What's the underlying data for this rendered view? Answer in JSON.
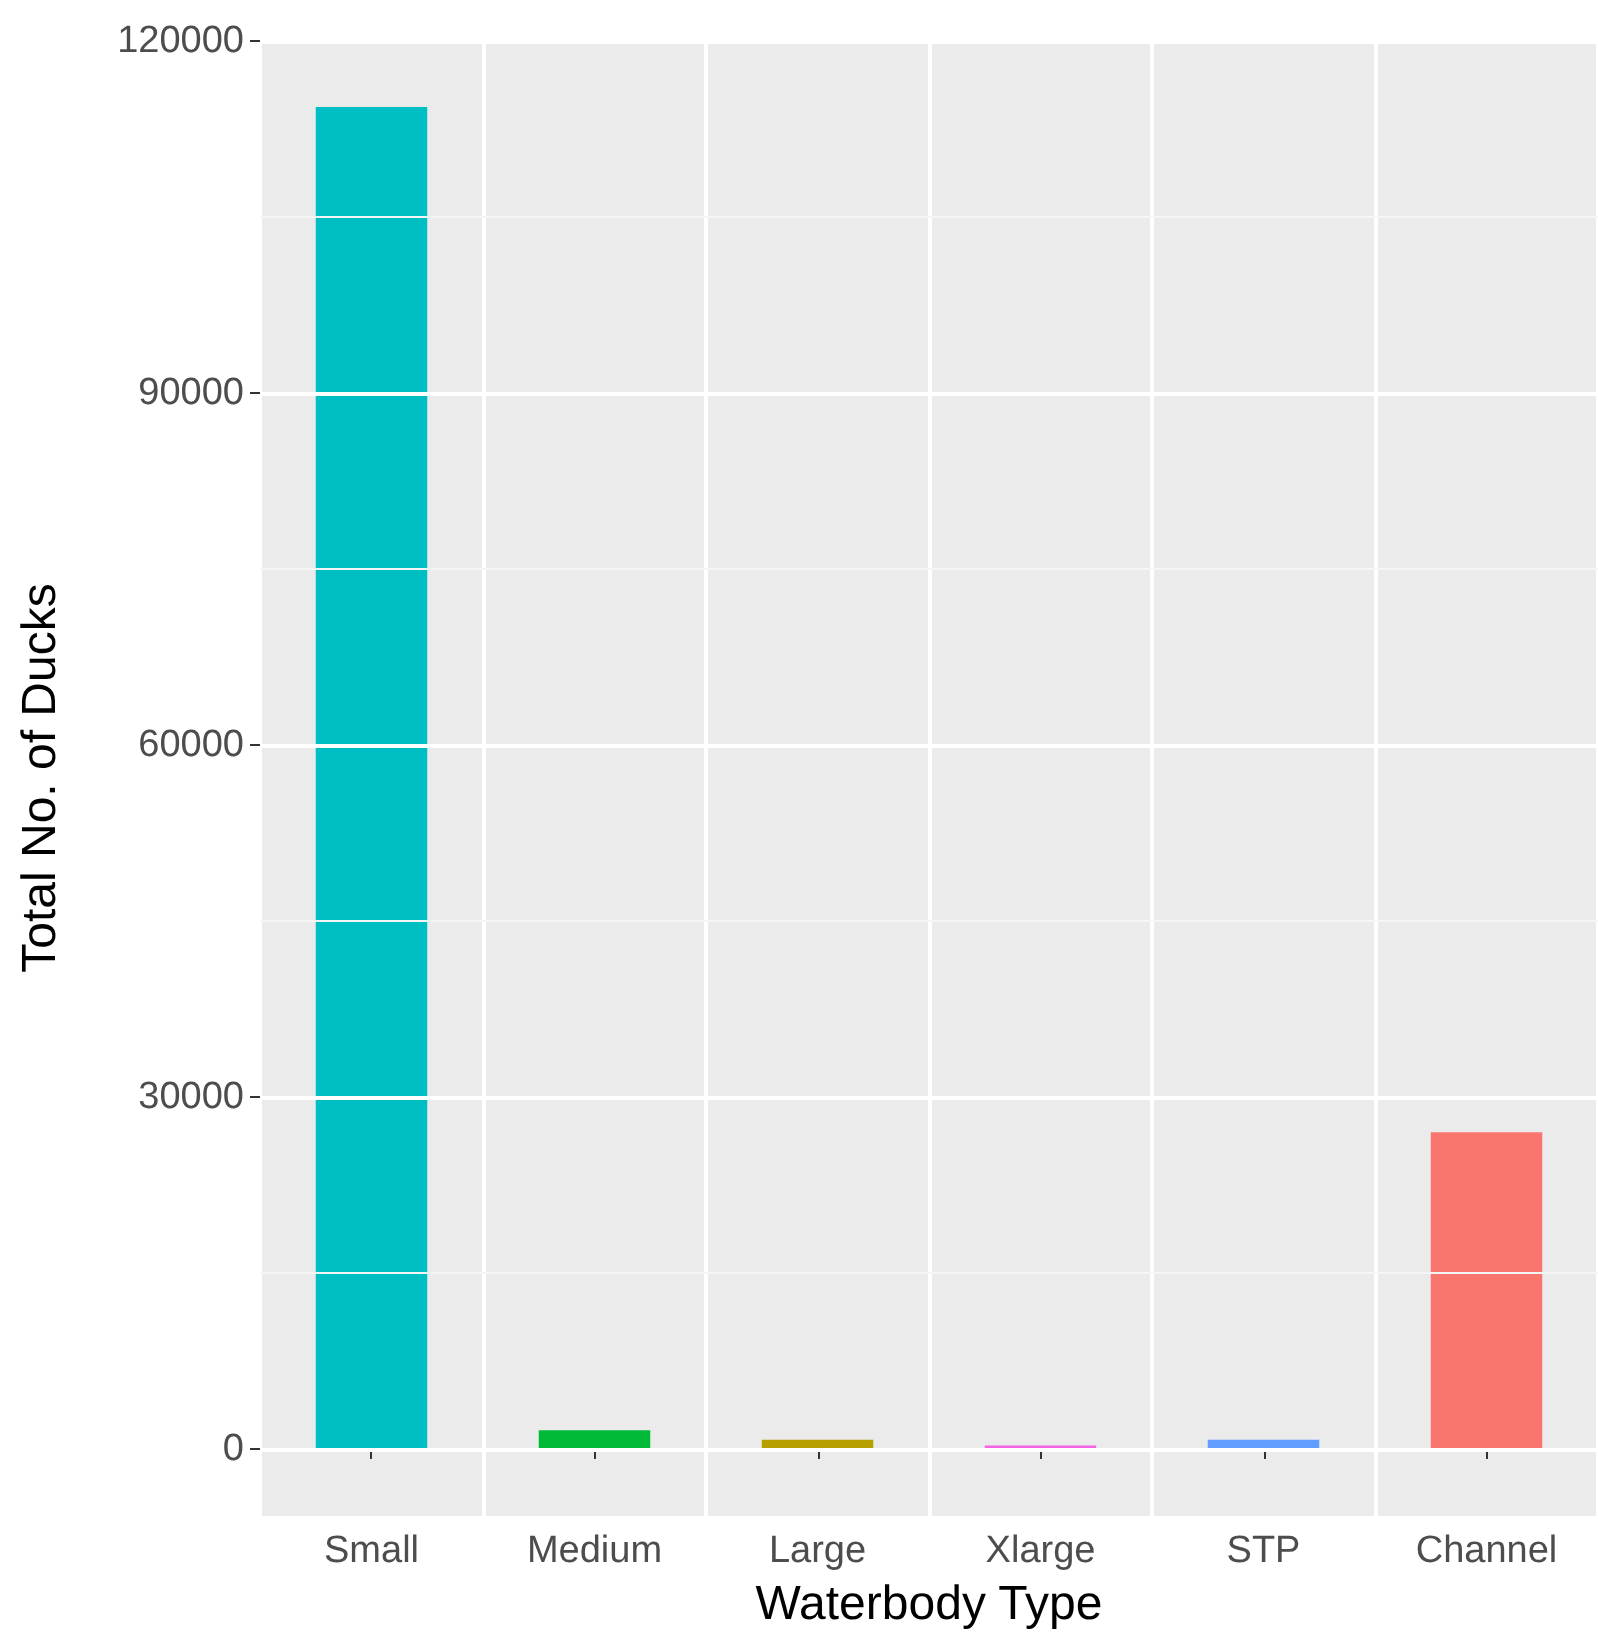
{
  "chart_data": {
    "type": "bar",
    "xlabel": "Waterbody Type",
    "ylabel": "Total No. of Ducks",
    "categories": [
      "Small",
      "Medium",
      "Large",
      "Xlarge",
      "STP",
      "Channel"
    ],
    "values": [
      114400,
      1600,
      800,
      300,
      800,
      27000
    ],
    "colors": [
      "#00bfc4",
      "#00ba38",
      "#b79f00",
      "#f564e3",
      "#619cff",
      "#f8766d"
    ],
    "ylim": [
      -5700,
      120100
    ],
    "yticks": [
      0,
      30000,
      60000,
      90000,
      120000
    ],
    "grid": true
  }
}
